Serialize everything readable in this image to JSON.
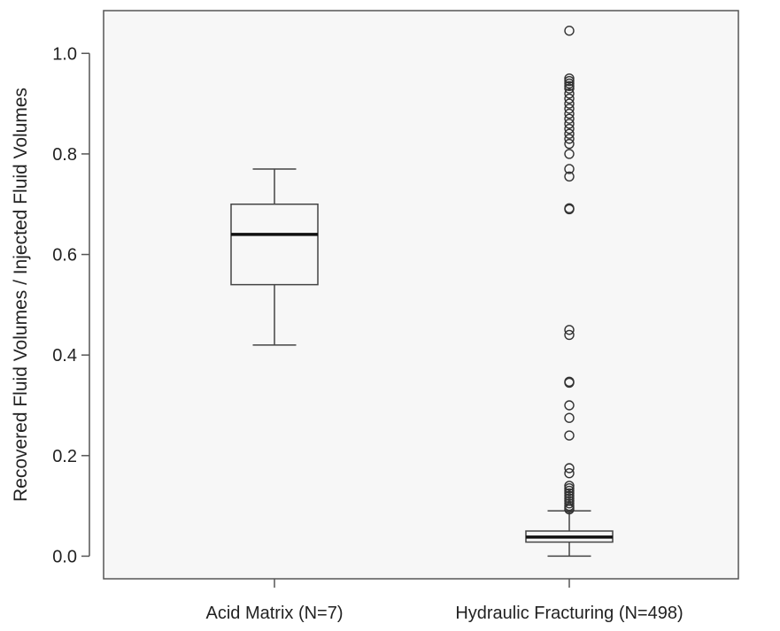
{
  "chart_data": {
    "type": "box",
    "title": "",
    "xlabel": "",
    "ylabel": "Recovered Fluid Volumes / Injected Fluid Volumes",
    "ylim": [
      -0.045,
      1.085
    ],
    "yticks": [
      0.0,
      0.2,
      0.4,
      0.6,
      0.8,
      1.0
    ],
    "ytick_labels": [
      "0.0",
      "0.2",
      "0.4",
      "0.6",
      "0.8",
      "1.0"
    ],
    "grid": false,
    "categories": [
      "Acid Matrix (N=7)",
      "Hydraulic Fracturing (N=498)"
    ],
    "boxes": [
      {
        "category": "Acid Matrix (N=7)",
        "whisker_low": 0.42,
        "q1": 0.54,
        "median": 0.64,
        "q3": 0.7,
        "whisker_high": 0.77,
        "outliers": []
      },
      {
        "category": "Hydraulic Fracturing (N=498)",
        "whisker_low": 0.0,
        "q1": 0.028,
        "median": 0.038,
        "q3": 0.05,
        "whisker_high": 0.09,
        "outliers": [
          0.093,
          0.096,
          0.1,
          0.105,
          0.11,
          0.115,
          0.12,
          0.125,
          0.13,
          0.135,
          0.14,
          0.165,
          0.175,
          0.24,
          0.275,
          0.3,
          0.345,
          0.347,
          0.44,
          0.45,
          0.69,
          0.692,
          0.755,
          0.77,
          0.8,
          0.82,
          0.83,
          0.84,
          0.85,
          0.86,
          0.87,
          0.88,
          0.89,
          0.9,
          0.91,
          0.92,
          0.93,
          0.935,
          0.94,
          0.945,
          0.95,
          1.045
        ]
      }
    ]
  }
}
